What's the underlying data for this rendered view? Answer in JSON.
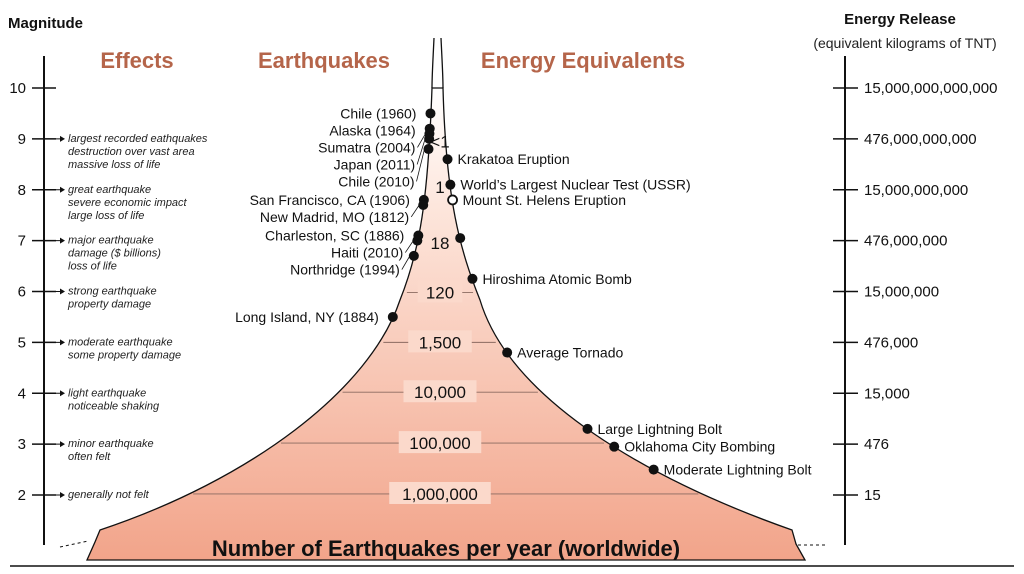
{
  "headers": {
    "magnitude": "Magnitude",
    "energy_title": "Energy Release",
    "energy_subtitle": "(equivalent kilograms of TNT)",
    "effects": "Effects",
    "earthquakes": "Earthquakes",
    "equivalents": "Energy Equivalents"
  },
  "magnitude_scale": [
    {
      "label": "10",
      "value": 10
    },
    {
      "label": "9",
      "value": 9
    },
    {
      "label": "8",
      "value": 8
    },
    {
      "label": "7",
      "value": 7
    },
    {
      "label": "6",
      "value": 6
    },
    {
      "label": "5",
      "value": 5
    },
    {
      "label": "4",
      "value": 4
    },
    {
      "label": "3",
      "value": 3
    },
    {
      "label": "2",
      "value": 2
    }
  ],
  "energy_scale": [
    {
      "magnitude": 10,
      "label": "15,000,000,000,000"
    },
    {
      "magnitude": 9,
      "label": "476,000,000,000"
    },
    {
      "magnitude": 8,
      "label": "15,000,000,000"
    },
    {
      "magnitude": 7,
      "label": "476,000,000"
    },
    {
      "magnitude": 6,
      "label": "15,000,000"
    },
    {
      "magnitude": 5,
      "label": "476,000"
    },
    {
      "magnitude": 4,
      "label": "15,000"
    },
    {
      "magnitude": 3,
      "label": "476"
    },
    {
      "magnitude": 2,
      "label": "15"
    }
  ],
  "effects": [
    {
      "magnitude": 9,
      "lines": [
        "largest recorded eathquakes",
        "destruction over vast area",
        "massive loss of life"
      ]
    },
    {
      "magnitude": 8,
      "lines": [
        "great earthquake",
        "severe economic impact",
        "large loss of life"
      ]
    },
    {
      "magnitude": 7,
      "lines": [
        "major earthquake",
        "damage ($ billions)",
        "loss of life"
      ]
    },
    {
      "magnitude": 6,
      "lines": [
        "strong earthquake",
        "property damage"
      ]
    },
    {
      "magnitude": 5,
      "lines": [
        "moderate earthquake",
        "some property damage"
      ]
    },
    {
      "magnitude": 4,
      "lines": [
        "light earthquake",
        "noticeable shaking"
      ]
    },
    {
      "magnitude": 3,
      "lines": [
        "minor earthquake",
        "often felt"
      ]
    },
    {
      "magnitude": 2,
      "lines": [
        "generally not felt"
      ]
    }
  ],
  "earthquakes": [
    {
      "name": "Chile (1960)",
      "magnitude": 9.5
    },
    {
      "name": "Alaska (1964)",
      "magnitude": 9.2
    },
    {
      "name": "Sumatra (2004)",
      "magnitude": 9.1
    },
    {
      "name": "Japan (2011)",
      "magnitude": 9.0
    },
    {
      "name": "Chile (2010)",
      "magnitude": 8.8
    },
    {
      "name": "San Francisco, CA (1906)",
      "magnitude": 7.8
    },
    {
      "name": "New Madrid, MO (1812)",
      "magnitude": 7.7
    },
    {
      "name": "Charleston, SC (1886)",
      "magnitude": 7.1
    },
    {
      "name": "Haiti (2010)",
      "magnitude": 7.0
    },
    {
      "name": "Northridge (1994)",
      "magnitude": 6.7
    },
    {
      "name": "Long Island, NY (1884)",
      "magnitude": 5.5
    }
  ],
  "energy_equivalents": [
    {
      "name": "Krakatoa Eruption",
      "magnitude": 8.6,
      "hollow": false
    },
    {
      "name": "World’s Largest Nuclear Test (USSR)",
      "magnitude": 8.1,
      "hollow": false
    },
    {
      "name": "Mount St. Helens Eruption",
      "magnitude": 7.8,
      "hollow": true
    },
    {
      "name": "",
      "magnitude": 7.05,
      "hollow": false
    },
    {
      "name": "Hiroshima Atomic Bomb",
      "magnitude": 6.25,
      "hollow": false
    },
    {
      "name": "Average Tornado",
      "magnitude": 4.8,
      "hollow": false
    },
    {
      "name": "Large Lightning Bolt",
      "magnitude": 3.3,
      "hollow": false
    },
    {
      "name": "Oklahoma City Bombing",
      "magnitude": 2.95,
      "hollow": false
    },
    {
      "name": "Moderate Lightning Bolt",
      "magnitude": 2.5,
      "hollow": false
    }
  ],
  "annual_counts": [
    {
      "magnitude": 8.95,
      "label": "<1"
    },
    {
      "magnitude": 8.05,
      "label": "1"
    },
    {
      "magnitude": 6.95,
      "label": "18"
    },
    {
      "magnitude": 5.98,
      "label": "120"
    },
    {
      "magnitude": 5.0,
      "label": "1,500"
    },
    {
      "magnitude": 4.02,
      "label": "10,000"
    },
    {
      "magnitude": 3.02,
      "label": "100,000"
    },
    {
      "magnitude": 2.02,
      "label": "1,000,000"
    }
  ],
  "footer": "Number of Earthquakes per year (worldwide)",
  "colors": {
    "funnel_top": "#ffffff",
    "funnel_bottom": "#f2a48a",
    "section_title": "#b5654a",
    "ink": "#111111"
  }
}
